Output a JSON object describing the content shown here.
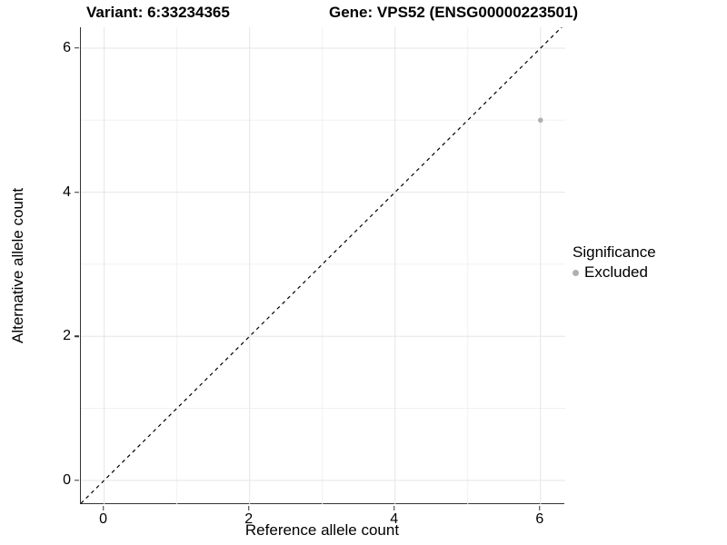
{
  "figure": {
    "title_left": "Variant: 6:33234365",
    "title_right": "Gene: VPS52 (ENSG00000223501)"
  },
  "chart_data": {
    "type": "scatter",
    "title": "Variant: 6:33234365   Gene: VPS52 (ENSG00000223501)",
    "xlabel": "Reference allele count",
    "ylabel": "Alternative allele count",
    "xlim": [
      -0.32,
      6.34
    ],
    "ylim": [
      -0.33,
      6.29
    ],
    "x_major_ticks": [
      0,
      2,
      4,
      6
    ],
    "y_major_ticks": [
      0,
      2,
      4,
      6
    ],
    "x_minor_gridlines": [
      1,
      3,
      5
    ],
    "y_minor_gridlines": [
      1,
      3,
      5
    ],
    "grid": true,
    "points": [
      {
        "x": 6,
        "y": 5,
        "series": "Excluded"
      }
    ],
    "identity_line": {
      "style": "dashed",
      "slope": 1,
      "intercept": 0,
      "color": "#000000"
    },
    "legend": {
      "title": "Significance",
      "position": "right",
      "entries": [
        {
          "label": "Excluded",
          "color": "#b0b0b0"
        }
      ]
    },
    "colors": {
      "point": "#b0b0b0",
      "grid_major": "#e5e5e5",
      "grid_minor": "#f1f1f1",
      "axis": "#333333",
      "text": "#000000"
    }
  }
}
